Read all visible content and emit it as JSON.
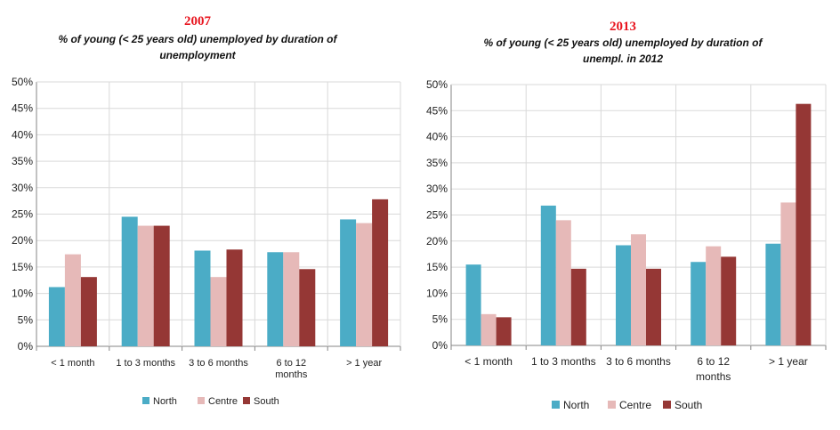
{
  "colors": {
    "North": "#4bacc6",
    "Centre": "#e6b9b8",
    "South": "#953735"
  },
  "chart_data": [
    {
      "type": "bar",
      "title": "2007",
      "subtitle_line1": "% of young (< 25 years old) unemployed by duration of",
      "subtitle_line2": "unemployment",
      "categories": [
        "< 1 month",
        "1 to 3 months",
        "3 to 6 months",
        "6 to 12 months",
        "> 1 year"
      ],
      "category_lines": [
        [
          "< 1 month"
        ],
        [
          "1 to 3 months"
        ],
        [
          "3 to 6 months"
        ],
        [
          "6 to 12",
          "months"
        ],
        [
          "> 1 year"
        ]
      ],
      "series": [
        {
          "name": "North",
          "values": [
            11.2,
            24.5,
            18.1,
            17.8,
            24.0
          ]
        },
        {
          "name": "Centre",
          "values": [
            17.4,
            22.8,
            13.1,
            17.8,
            23.3
          ]
        },
        {
          "name": "South",
          "values": [
            13.1,
            22.8,
            18.3,
            14.6,
            27.8
          ]
        }
      ],
      "ylim": [
        0,
        50
      ],
      "yticks": [
        0,
        5,
        10,
        15,
        20,
        25,
        30,
        35,
        40,
        45,
        50
      ],
      "ytick_labels": [
        "0%",
        "5%",
        "10%",
        "15%",
        "20%",
        "25%",
        "30%",
        "35%",
        "40%",
        "45%",
        "50%"
      ],
      "xlabel": "",
      "ylabel": "",
      "grid": true,
      "legend": [
        "North",
        "Centre",
        "South"
      ],
      "legend_position": "bottom"
    },
    {
      "type": "bar",
      "title": "2013",
      "subtitle_line1": "% of young (< 25 years old) unemployed by duration of",
      "subtitle_line2": "unempl. in 2012",
      "categories": [
        "< 1 month",
        "1 to 3 months",
        "3 to 6 months",
        "6 to 12 months",
        "> 1 year"
      ],
      "category_lines": [
        [
          "< 1 month"
        ],
        [
          "1 to 3 months"
        ],
        [
          "3 to 6 months"
        ],
        [
          "6 to 12",
          "months"
        ],
        [
          "> 1 year"
        ]
      ],
      "series": [
        {
          "name": "North",
          "values": [
            15.5,
            26.8,
            19.2,
            16.0,
            19.5
          ]
        },
        {
          "name": "Centre",
          "values": [
            6.0,
            24.0,
            21.3,
            19.0,
            27.4
          ]
        },
        {
          "name": "South",
          "values": [
            5.4,
            14.7,
            14.7,
            17.0,
            46.3
          ]
        }
      ],
      "ylim": [
        0,
        50
      ],
      "yticks": [
        0,
        5,
        10,
        15,
        20,
        25,
        30,
        35,
        40,
        45,
        50
      ],
      "ytick_labels": [
        "0%",
        "5%",
        "10%",
        "15%",
        "20%",
        "25%",
        "30%",
        "35%",
        "40%",
        "45%",
        "50%"
      ],
      "xlabel": "",
      "ylabel": "",
      "grid": true,
      "legend": [
        "North",
        "Centre",
        "South"
      ],
      "legend_position": "bottom"
    }
  ]
}
